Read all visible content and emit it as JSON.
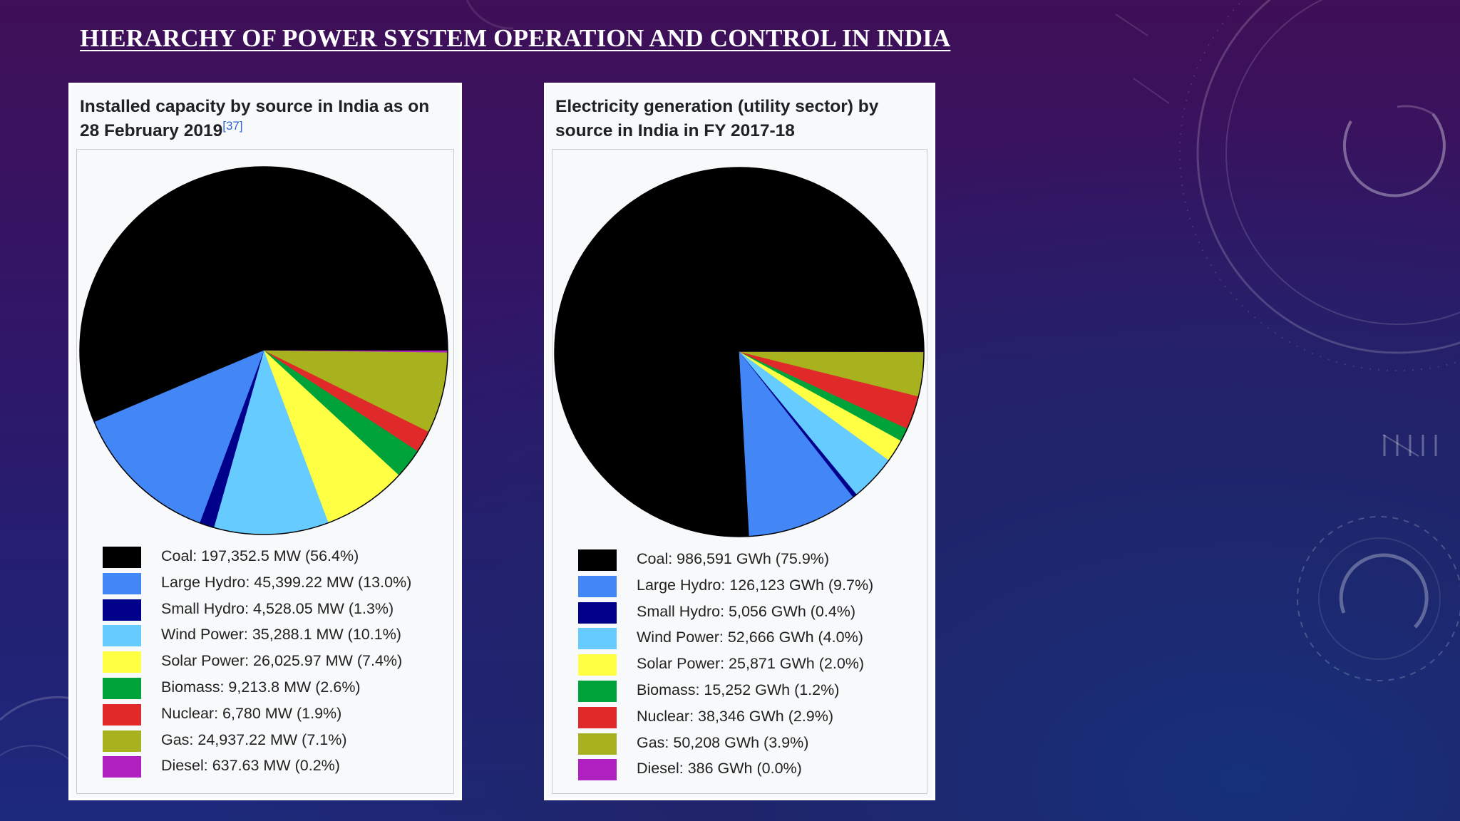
{
  "slide_title": "HIERARCHY OF POWER SYSTEM OPERATION AND CONTROL IN INDIA",
  "colors": {
    "Coal": "#000000",
    "Large Hydro": "#4287f5",
    "Small Hydro": "#00008b",
    "Wind Power": "#66ccff",
    "Solar Power": "#ffff44",
    "Biomass": "#00a33a",
    "Nuclear": "#e02a2a",
    "Gas": "#a8b21e",
    "Diesel": "#b020c0"
  },
  "chart_data": [
    {
      "type": "pie",
      "title": "Installed capacity by source in India as on 28 February 2019",
      "title_line1": "Installed capacity by source in India as on",
      "title_line2": "28 February 2019",
      "footnote": "[37]",
      "unit": "MW",
      "slices": [
        {
          "name": "Coal",
          "value": 197352.5,
          "percent": 56.4,
          "label": "Coal: 197,352.5 MW (56.4%)"
        },
        {
          "name": "Large Hydro",
          "value": 45399.22,
          "percent": 13.0,
          "label": "Large Hydro: 45,399.22 MW (13.0%)"
        },
        {
          "name": "Small Hydro",
          "value": 4528.05,
          "percent": 1.3,
          "label": "Small Hydro: 4,528.05 MW (1.3%)"
        },
        {
          "name": "Wind Power",
          "value": 35288.1,
          "percent": 10.1,
          "label": "Wind Power: 35,288.1 MW (10.1%)"
        },
        {
          "name": "Solar Power",
          "value": 26025.97,
          "percent": 7.4,
          "label": "Solar Power: 26,025.97 MW (7.4%)"
        },
        {
          "name": "Biomass",
          "value": 9213.8,
          "percent": 2.6,
          "label": "Biomass: 9,213.8 MW (2.6%)"
        },
        {
          "name": "Nuclear",
          "value": 6780,
          "percent": 1.9,
          "label": "Nuclear: 6,780 MW (1.9%)"
        },
        {
          "name": "Gas",
          "value": 24937.22,
          "percent": 7.1,
          "label": "Gas: 24,937.22 MW (7.1%)"
        },
        {
          "name": "Diesel",
          "value": 637.63,
          "percent": 0.2,
          "label": "Diesel: 637.63 MW (0.2%)"
        }
      ]
    },
    {
      "type": "pie",
      "title": "Electricity generation (utility sector) by source in India in FY 2017-18",
      "title_line1": "Electricity generation (utility sector) by",
      "title_line2": "source in India in FY 2017-18",
      "unit": "GWh",
      "slices": [
        {
          "name": "Coal",
          "value": 986591,
          "percent": 75.9,
          "label": "Coal: 986,591 GWh (75.9%)"
        },
        {
          "name": "Large Hydro",
          "value": 126123,
          "percent": 9.7,
          "label": "Large Hydro: 126,123 GWh (9.7%)"
        },
        {
          "name": "Small Hydro",
          "value": 5056,
          "percent": 0.4,
          "label": "Small Hydro: 5,056 GWh (0.4%)"
        },
        {
          "name": "Wind Power",
          "value": 52666,
          "percent": 4.0,
          "label": "Wind Power: 52,666 GWh (4.0%)"
        },
        {
          "name": "Solar Power",
          "value": 25871,
          "percent": 2.0,
          "label": "Solar Power: 25,871 GWh (2.0%)"
        },
        {
          "name": "Biomass",
          "value": 15252,
          "percent": 1.2,
          "label": "Biomass: 15,252 GWh (1.2%)"
        },
        {
          "name": "Nuclear",
          "value": 38346,
          "percent": 2.9,
          "label": "Nuclear: 38,346 GWh (2.9%)"
        },
        {
          "name": "Gas",
          "value": 50208,
          "percent": 3.9,
          "label": "Gas: 50,208 GWh (3.9%)"
        },
        {
          "name": "Diesel",
          "value": 386,
          "percent": 0.0,
          "label": "Diesel: 386 GWh (0.0%)"
        }
      ]
    }
  ]
}
